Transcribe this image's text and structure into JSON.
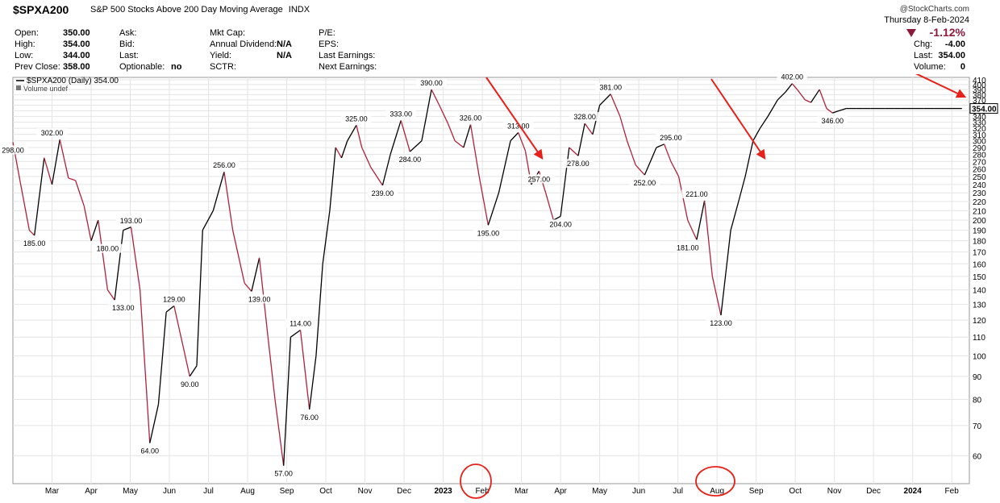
{
  "header": {
    "symbol": "$SPXA200",
    "description": "S&P 500 Stocks Above 200 Day Moving Average",
    "exchange": "INDX",
    "credit": "@StockCharts.com",
    "date": "Thursday   8-Feb-2024",
    "change_pct": "-1.12%",
    "left_fields": [
      {
        "label": "Open:",
        "value": "350.00"
      },
      {
        "label": "High:",
        "value": "354.00"
      },
      {
        "label": "Low:",
        "value": "344.00"
      },
      {
        "label": "Prev Close:",
        "value": "358.00"
      }
    ],
    "mid_fields": [
      {
        "label": "Ask:",
        "value": ""
      },
      {
        "label": "Bid:",
        "value": ""
      },
      {
        "label": "Last:",
        "value": ""
      },
      {
        "label": "Optionable:",
        "value": "no"
      }
    ],
    "mid2_fields": [
      {
        "label": "Mkt Cap:",
        "value": ""
      },
      {
        "label": "Annual Dividend:",
        "value": "N/A"
      },
      {
        "label": "Yield:",
        "value": "N/A"
      },
      {
        "label": "SCTR:",
        "value": ""
      }
    ],
    "mid3_fields": [
      {
        "label": "P/E:",
        "value": ""
      },
      {
        "label": "EPS:",
        "value": ""
      },
      {
        "label": "Last Earnings:",
        "value": ""
      },
      {
        "label": "Next Earnings:",
        "value": ""
      }
    ],
    "right_fields": [
      {
        "label": "Chg:",
        "value": "-4.00"
      },
      {
        "label": "Last:",
        "value": "354.00"
      },
      {
        "label": "Volume:",
        "value": "0"
      }
    ]
  },
  "chart_data": {
    "type": "line",
    "y_scale": "log",
    "legend": [
      "$SPXA200 (Daily) 354.00",
      "Volume undef"
    ],
    "line_color_up": "#000000",
    "line_color_down": "#b0223c",
    "annotation_color": "#e8201a",
    "last_value_label": "354.00",
    "ylim": [
      52,
      415
    ],
    "y_ticks": [
      410,
      400,
      390,
      380,
      370,
      360,
      350,
      340,
      330,
      320,
      310,
      300,
      290,
      280,
      270,
      260,
      250,
      240,
      230,
      220,
      210,
      200,
      190,
      180,
      170,
      160,
      150,
      140,
      130,
      120,
      110,
      100,
      90,
      80,
      70,
      60
    ],
    "x_labels": [
      {
        "label": "Mar",
        "t": 2
      },
      {
        "label": "Apr",
        "t": 3
      },
      {
        "label": "May",
        "t": 4
      },
      {
        "label": "Jun",
        "t": 5
      },
      {
        "label": "Jul",
        "t": 6
      },
      {
        "label": "Aug",
        "t": 7
      },
      {
        "label": "Sep",
        "t": 8
      },
      {
        "label": "Oct",
        "t": 9
      },
      {
        "label": "Nov",
        "t": 10
      },
      {
        "label": "Dec",
        "t": 11
      },
      {
        "label": "2023",
        "t": 12
      },
      {
        "label": "Feb",
        "t": 13
      },
      {
        "label": "Mar",
        "t": 14
      },
      {
        "label": "Apr",
        "t": 15
      },
      {
        "label": "May",
        "t": 16
      },
      {
        "label": "Jun",
        "t": 17
      },
      {
        "label": "Jul",
        "t": 18
      },
      {
        "label": "Aug",
        "t": 19
      },
      {
        "label": "Sep",
        "t": 20
      },
      {
        "label": "Oct",
        "t": 21
      },
      {
        "label": "Nov",
        "t": 22
      },
      {
        "label": "Dec",
        "t": 23
      },
      {
        "label": "2024",
        "t": 24
      },
      {
        "label": "Feb",
        "t": 25
      }
    ],
    "series": [
      {
        "x": [
          1.0,
          1.18,
          1.42,
          1.55,
          1.8,
          2.0,
          2.2,
          2.42,
          2.6,
          2.82,
          3.0,
          3.18,
          3.42,
          3.6,
          3.82,
          4.02,
          4.25,
          4.5,
          4.72,
          4.92,
          5.12,
          5.35,
          5.52,
          5.7,
          5.85,
          6.12,
          6.4,
          6.62,
          6.92,
          7.1,
          7.3,
          7.52,
          7.7,
          7.92,
          8.1,
          8.35,
          8.58,
          8.75,
          8.92,
          9.1,
          9.25,
          9.4,
          9.55,
          9.78,
          9.92,
          10.15,
          10.45,
          10.65,
          10.92,
          11.15,
          11.45,
          11.7,
          11.9,
          12.12,
          12.3,
          12.52,
          12.7,
          12.92,
          13.15,
          13.42,
          13.72,
          13.92,
          14.1,
          14.25,
          14.45,
          14.62,
          14.82,
          15.0,
          15.22,
          15.45,
          15.62,
          15.82,
          16.0,
          16.28,
          16.52,
          16.7,
          16.92,
          17.15,
          17.45,
          17.65,
          17.82,
          18.02,
          18.25,
          18.48,
          18.68,
          18.88,
          19.1,
          19.35,
          19.55,
          19.72,
          19.92,
          20.1,
          20.3,
          20.55,
          20.75,
          20.92,
          21.05,
          21.25,
          21.4,
          21.62,
          21.8,
          21.95,
          22.12,
          22.3,
          22.55,
          22.72,
          22.92,
          23.12,
          23.3,
          23.52,
          23.7,
          23.85,
          24.05,
          24.28,
          24.55,
          24.82,
          25.0,
          25.1,
          25.26
        ],
        "y": [
          298,
          245,
          190,
          185,
          275,
          240,
          302,
          248,
          245,
          215,
          180,
          200,
          140,
          133,
          190,
          193,
          140,
          64,
          78,
          125,
          129,
          105,
          90,
          95,
          190,
          210,
          256,
          190,
          145,
          139,
          165,
          110,
          80,
          57,
          110,
          114,
          76,
          100,
          160,
          210,
          290,
          275,
          300,
          325,
          290,
          262,
          239,
          280,
          333,
          284,
          300,
          390,
          360,
          328,
          300,
          290,
          326,
          250,
          195,
          230,
          300,
          313,
          285,
          240,
          257,
          230,
          200,
          204,
          290,
          278,
          328,
          310,
          360,
          381,
          340,
          300,
          265,
          252,
          290,
          295,
          270,
          250,
          200,
          181,
          221,
          150,
          123,
          190,
          220,
          250,
          300,
          320,
          340,
          370,
          385,
          402,
          390,
          370,
          365,
          390,
          354,
          346,
          350,
          354,
          354,
          354,
          354,
          354,
          354,
          354,
          354,
          354,
          354,
          354,
          354,
          354,
          354,
          354,
          354
        ]
      }
    ],
    "labels": [
      {
        "x": 1.0,
        "y": 298,
        "text": "298.00"
      },
      {
        "x": 1.55,
        "y": 185,
        "text": "185.00"
      },
      {
        "x": 2.0,
        "y": 302,
        "text": "302.00"
      },
      {
        "x": 3.42,
        "y": 180,
        "text": "180.00"
      },
      {
        "x": 3.82,
        "y": 133,
        "text": "133.00"
      },
      {
        "x": 4.02,
        "y": 193,
        "text": "193.00"
      },
      {
        "x": 4.5,
        "y": 64,
        "text": "64.00"
      },
      {
        "x": 5.12,
        "y": 129,
        "text": "129.00"
      },
      {
        "x": 5.52,
        "y": 90,
        "text": "90.00"
      },
      {
        "x": 6.4,
        "y": 256,
        "text": "256.00"
      },
      {
        "x": 7.3,
        "y": 139,
        "text": "139.00"
      },
      {
        "x": 7.92,
        "y": 57,
        "text": "57.00"
      },
      {
        "x": 8.35,
        "y": 114,
        "text": "114.00"
      },
      {
        "x": 8.58,
        "y": 76,
        "text": "76.00"
      },
      {
        "x": 9.78,
        "y": 325,
        "text": "325.00"
      },
      {
        "x": 10.45,
        "y": 239,
        "text": "239.00"
      },
      {
        "x": 10.92,
        "y": 333,
        "text": "333.00"
      },
      {
        "x": 11.15,
        "y": 284,
        "text": "284.00"
      },
      {
        "x": 11.7,
        "y": 390,
        "text": "390.00"
      },
      {
        "x": 12.7,
        "y": 326,
        "text": "326.00"
      },
      {
        "x": 13.15,
        "y": 195,
        "text": "195.00"
      },
      {
        "x": 13.92,
        "y": 313,
        "text": "313.00"
      },
      {
        "x": 14.45,
        "y": 257,
        "text": "257.00"
      },
      {
        "x": 15.0,
        "y": 204,
        "text": "204.00"
      },
      {
        "x": 15.62,
        "y": 328,
        "text": "328.00"
      },
      {
        "x": 15.45,
        "y": 278,
        "text": "278.00"
      },
      {
        "x": 16.28,
        "y": 381,
        "text": "381.00"
      },
      {
        "x": 17.15,
        "y": 252,
        "text": "252.00"
      },
      {
        "x": 17.82,
        "y": 295,
        "text": "295.00"
      },
      {
        "x": 18.25,
        "y": 181,
        "text": "181.00"
      },
      {
        "x": 18.48,
        "y": 221,
        "text": "221.00"
      },
      {
        "x": 19.1,
        "y": 123,
        "text": "123.00"
      },
      {
        "x": 20.92,
        "y": 402,
        "text": "402.00"
      },
      {
        "x": 21.95,
        "y": 346,
        "text": "346.00"
      }
    ]
  }
}
